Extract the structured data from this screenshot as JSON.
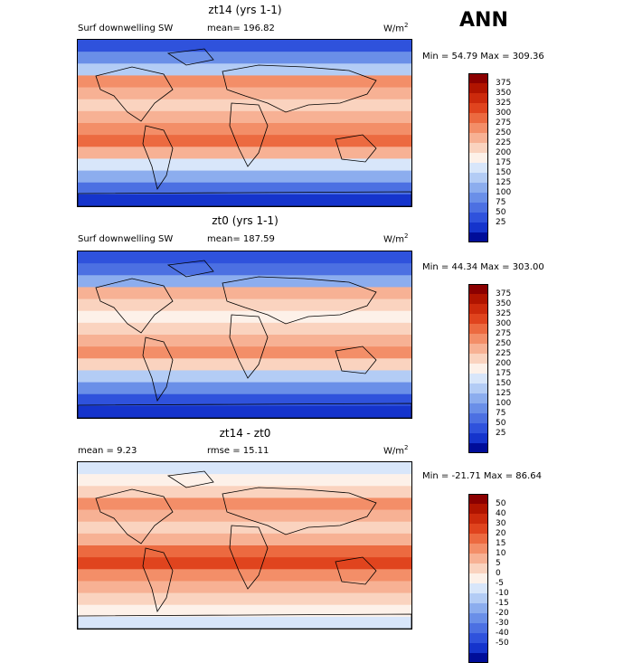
{
  "season": "ANN",
  "panels": [
    {
      "title": "zt14 (yrs 1-1)",
      "var_label": "Surf downwelling SW",
      "mean_label": "mean= 196.82",
      "units": "W/m",
      "units_exp": "2",
      "minmax": "Min =  54.79 Max = 309.36"
    },
    {
      "title": "zt0 (yrs 1-1)",
      "var_label": "Surf downwelling SW",
      "mean_label": "mean= 187.59",
      "units": "W/m",
      "units_exp": "2",
      "minmax": "Min =  44.34 Max = 303.00"
    },
    {
      "title": "zt14 - zt0",
      "mean_label": "mean =    9.23",
      "rmse_label": "rmse =   15.11",
      "units": "W/m",
      "units_exp": "2",
      "minmax": "Min = -21.71 Max =  86.64"
    }
  ],
  "colorbars": {
    "absolute": {
      "levels": [
        "375",
        "350",
        "325",
        "300",
        "275",
        "250",
        "225",
        "200",
        "175",
        "150",
        "125",
        "100",
        "75",
        "50",
        "25"
      ],
      "colors": [
        "#8b0000",
        "#b01400",
        "#cc2a0c",
        "#e0441e",
        "#ec6a40",
        "#f38e68",
        "#f7b194",
        "#fad3bf",
        "#fdf1e9",
        "#d8e6fa",
        "#b3ccf5",
        "#8cadee",
        "#6a8fe8",
        "#4c70e2",
        "#2f52dc",
        "#1534cc",
        "#000d99"
      ]
    },
    "difference": {
      "levels": [
        "50",
        "40",
        "30",
        "20",
        "15",
        "10",
        "5",
        "0",
        "-5",
        "-10",
        "-15",
        "-20",
        "-30",
        "-40",
        "-50"
      ],
      "colors": [
        "#8b0000",
        "#b01400",
        "#cc2a0c",
        "#e0441e",
        "#ec6a40",
        "#f38e68",
        "#f7b194",
        "#fad3bf",
        "#fdf1e9",
        "#d8e6fa",
        "#b3ccf5",
        "#8cadee",
        "#6a8fe8",
        "#4c70e2",
        "#2f52dc",
        "#1534cc",
        "#000d99"
      ]
    }
  },
  "field_bands": {
    "zt14": [
      "#2f52dc",
      "#6a8fe8",
      "#b3ccf5",
      "#f38e68",
      "#f7b194",
      "#fad3bf",
      "#f7b194",
      "#f38e68",
      "#ec6a40",
      "#f7b194",
      "#d8e6fa",
      "#8cadee",
      "#4c70e2",
      "#1534cc"
    ],
    "zt0": [
      "#2f52dc",
      "#4c70e2",
      "#8cadee",
      "#f7b194",
      "#fad3bf",
      "#fdf1e9",
      "#fad3bf",
      "#f7b194",
      "#f38e68",
      "#fad3bf",
      "#b3ccf5",
      "#6a8fe8",
      "#2f52dc",
      "#1534cc"
    ],
    "diff": [
      "#d8e6fa",
      "#fdf1e9",
      "#fad3bf",
      "#f38e68",
      "#f7b194",
      "#fad3bf",
      "#f7b194",
      "#ec6a40",
      "#e0441e",
      "#f38e68",
      "#f7b194",
      "#fad3bf",
      "#fdf1e9",
      "#d8e6fa"
    ]
  }
}
